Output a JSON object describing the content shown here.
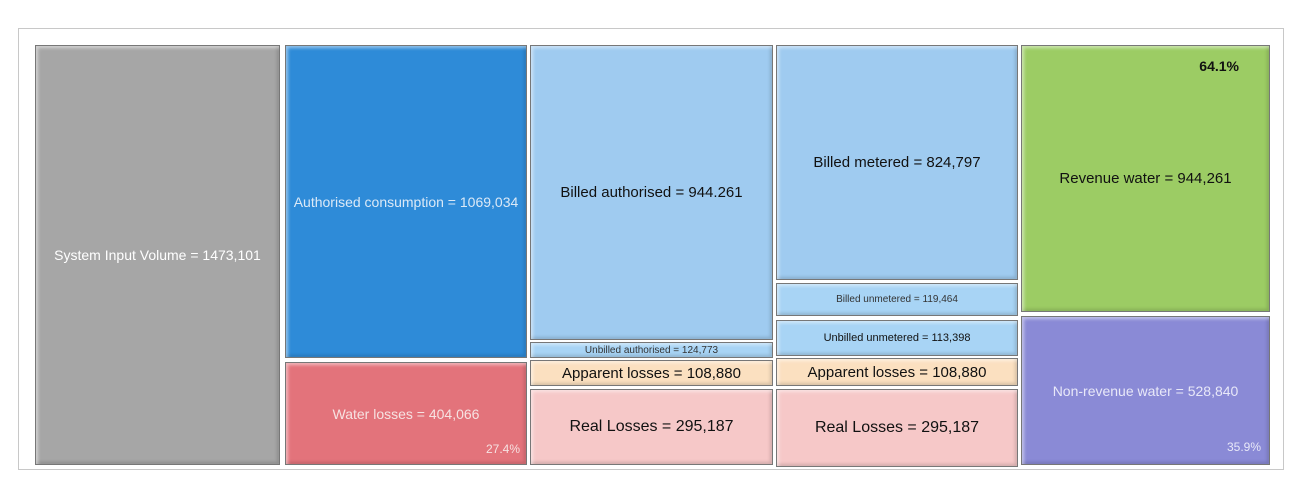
{
  "boxes": [
    {
      "label": "System Input Volume = 1473,101"
    },
    {
      "label": "Authorised consumption = 1069,034"
    },
    {
      "label": "Water losses = 404,066",
      "percent": "27.4%"
    },
    {
      "label": "Billed authorised = 944.261"
    },
    {
      "label": "Unbilled authorised = 124,773"
    },
    {
      "label": "Apparent losses = 108,880"
    },
    {
      "label": "Real Losses = 295,187"
    },
    {
      "label": "Billed metered = 824,797"
    },
    {
      "label": "Billed unmetered = 119,464"
    },
    {
      "label": "Unbilled unmetered = 113,398"
    },
    {
      "label": "Apparent losses = 108,880"
    },
    {
      "label": "Real Losses = 295,187"
    },
    {
      "label": "Revenue water = 944,261",
      "percent": "64.1%"
    },
    {
      "label": "Non-revenue water = 528,840",
      "percent": "35.9%"
    }
  ]
}
